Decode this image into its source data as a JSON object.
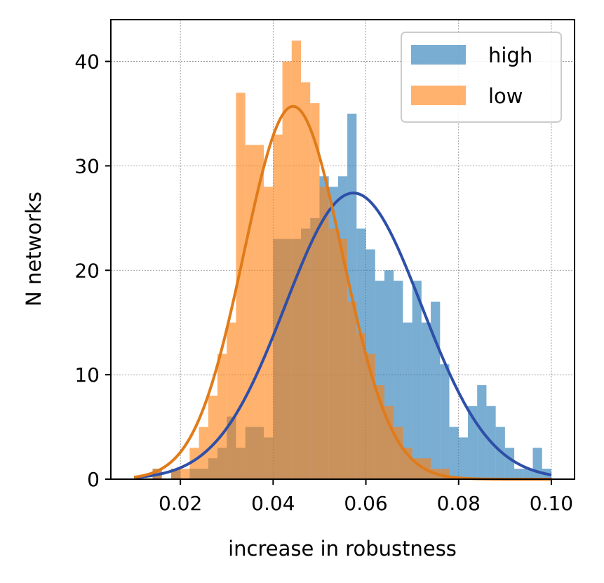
{
  "chart_data": {
    "type": "histogram",
    "xlabel": "increase in robustness",
    "ylabel": "N networks",
    "xlim": [
      0.005,
      0.105
    ],
    "ylim": [
      0,
      44
    ],
    "x_ticks": [
      "0.02",
      "0.04",
      "0.06",
      "0.08",
      "0.10"
    ],
    "y_ticks": [
      "0",
      "10",
      "20",
      "30",
      "40"
    ],
    "grid": true,
    "legend_position": "top-right",
    "bin_width": 0.002,
    "series": [
      {
        "name": "high",
        "color": "#1f77b4",
        "opacity": 0.6,
        "bin_starts": [
          0.014,
          0.016,
          0.018,
          0.02,
          0.022,
          0.024,
          0.026,
          0.028,
          0.03,
          0.032,
          0.034,
          0.036,
          0.038,
          0.04,
          0.042,
          0.044,
          0.046,
          0.048,
          0.05,
          0.052,
          0.054,
          0.056,
          0.058,
          0.06,
          0.062,
          0.064,
          0.066,
          0.068,
          0.07,
          0.072,
          0.074,
          0.076,
          0.078,
          0.08,
          0.082,
          0.084,
          0.086,
          0.088,
          0.09,
          0.092,
          0.094,
          0.096,
          0.098
        ],
        "counts": [
          1,
          0,
          1,
          0,
          1,
          1,
          2,
          3,
          6,
          3,
          5,
          5,
          4,
          23,
          23,
          23,
          24,
          25,
          29,
          28,
          29,
          35,
          24,
          22,
          19,
          20,
          19,
          15,
          19,
          15,
          17,
          11,
          5,
          4,
          7,
          9,
          7,
          5,
          3,
          1,
          1,
          3,
          1
        ]
      },
      {
        "name": "low",
        "color": "#ff7f0e",
        "opacity": 0.6,
        "bin_starts": [
          0.014,
          0.016,
          0.018,
          0.02,
          0.022,
          0.024,
          0.026,
          0.028,
          0.03,
          0.032,
          0.034,
          0.036,
          0.038,
          0.04,
          0.042,
          0.044,
          0.046,
          0.048,
          0.05,
          0.052,
          0.054,
          0.056,
          0.058,
          0.06,
          0.062,
          0.064,
          0.066,
          0.068,
          0.07,
          0.072,
          0.074,
          0.076
        ],
        "counts": [
          1,
          0,
          1,
          1,
          3,
          5,
          8,
          12,
          15,
          37,
          32,
          32,
          28,
          33,
          40,
          42,
          38,
          36,
          28,
          24,
          23,
          17,
          14,
          12,
          9,
          7,
          5,
          3,
          2,
          2,
          1,
          1
        ]
      }
    ],
    "fit_curves": [
      {
        "for_series": "high",
        "color": "#2e4fa8",
        "mean": 0.0573,
        "sd": 0.0147,
        "peak": 27.4
      },
      {
        "for_series": "low",
        "color": "#e07b1a",
        "mean": 0.0443,
        "sd": 0.0106,
        "peak": 35.7
      }
    ]
  }
}
